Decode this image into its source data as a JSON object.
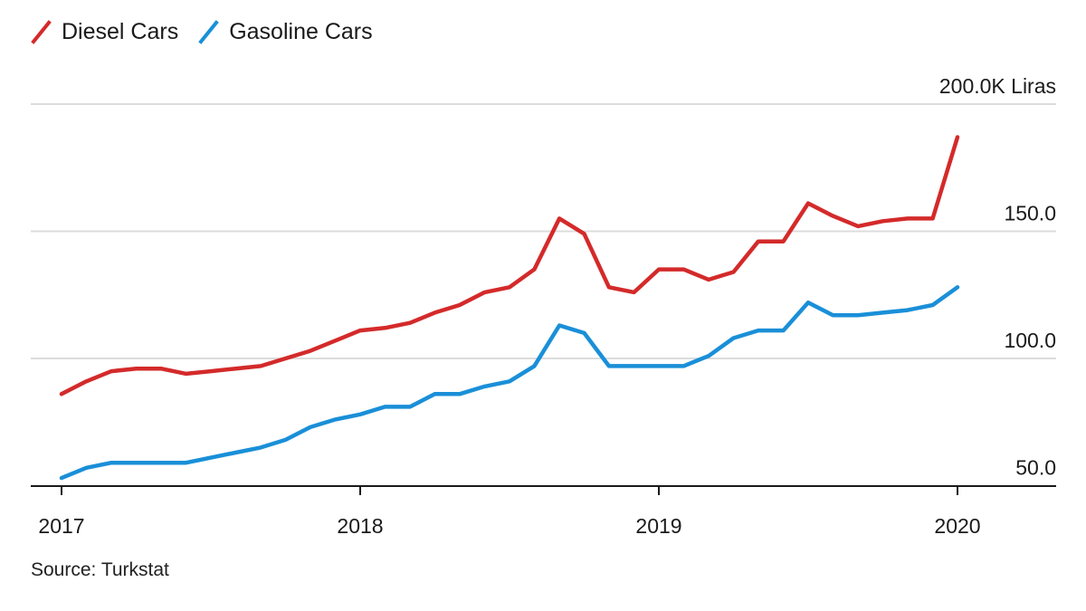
{
  "legend": [
    {
      "name": "Diesel Cars",
      "color": "#d42a2a"
    },
    {
      "name": "Gasoline Cars",
      "color": "#1a8fd8"
    }
  ],
  "source": "Source: Turkstat",
  "chart_data": {
    "type": "line",
    "title": "",
    "xlabel": "",
    "ylabel": "",
    "y_unit_label": "200.0K Liras",
    "y_ticks": [
      {
        "value": 200,
        "label": "200.0K Liras"
      },
      {
        "value": 150,
        "label": "150.0"
      },
      {
        "value": 100,
        "label": "100.0"
      },
      {
        "value": 50,
        "label": "50.0"
      }
    ],
    "x_ticks": [
      "2017",
      "2018",
      "2019",
      "2020"
    ],
    "ylim": [
      43,
      205
    ],
    "xlim": [
      2016.9,
      2020.33
    ],
    "grid": true,
    "legend_position": "top-left",
    "x": [
      2017.0,
      2017.083,
      2017.167,
      2017.25,
      2017.333,
      2017.417,
      2017.5,
      2017.583,
      2017.667,
      2017.75,
      2017.833,
      2017.917,
      2018.0,
      2018.083,
      2018.167,
      2018.25,
      2018.333,
      2018.417,
      2018.5,
      2018.583,
      2018.667,
      2018.75,
      2018.833,
      2018.917,
      2019.0,
      2019.083,
      2019.167,
      2019.25,
      2019.333,
      2019.417,
      2019.5,
      2019.583,
      2019.667,
      2019.75,
      2019.833,
      2019.917,
      2020.0
    ],
    "series": [
      {
        "name": "Diesel Cars",
        "color": "#d42a2a",
        "values": [
          86,
          91,
          95,
          96,
          96,
          94,
          95,
          96,
          97,
          100,
          103,
          107,
          111,
          112,
          114,
          118,
          121,
          126,
          128,
          135,
          155,
          149,
          128,
          126,
          135,
          135,
          131,
          134,
          146,
          146,
          161,
          156,
          152,
          154,
          155,
          155,
          187
        ]
      },
      {
        "name": "Gasoline Cars",
        "color": "#1a8fd8",
        "values": [
          53,
          57,
          59,
          59,
          59,
          59,
          61,
          63,
          65,
          68,
          73,
          76,
          78,
          81,
          81,
          86,
          86,
          89,
          91,
          97,
          113,
          110,
          97,
          97,
          97,
          97,
          101,
          108,
          111,
          111,
          122,
          117,
          117,
          118,
          119,
          121,
          128
        ]
      }
    ]
  }
}
